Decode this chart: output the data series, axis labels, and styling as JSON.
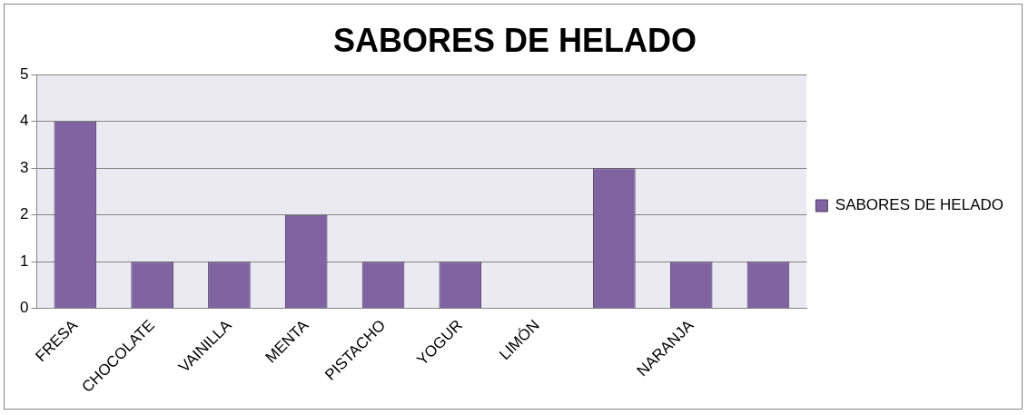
{
  "chart_data": {
    "type": "bar",
    "title": "SABORES DE HELADO",
    "categories": [
      "FRESA",
      "CHOCOLATE",
      "VAINILLA",
      "MENTA",
      "PISTACHO",
      "YOGUR",
      "LIMÓN",
      null,
      "NARANJA",
      null
    ],
    "series": [
      {
        "name": "SABORES DE HELADO",
        "color": "#8064a2",
        "values": [
          4,
          1,
          1,
          2,
          1,
          1,
          0,
          3,
          1,
          1
        ]
      }
    ],
    "ylim": [
      0,
      5
    ],
    "yticks": [
      0,
      1,
      2,
      3,
      4,
      5
    ],
    "grid": "y",
    "legend": "right"
  }
}
